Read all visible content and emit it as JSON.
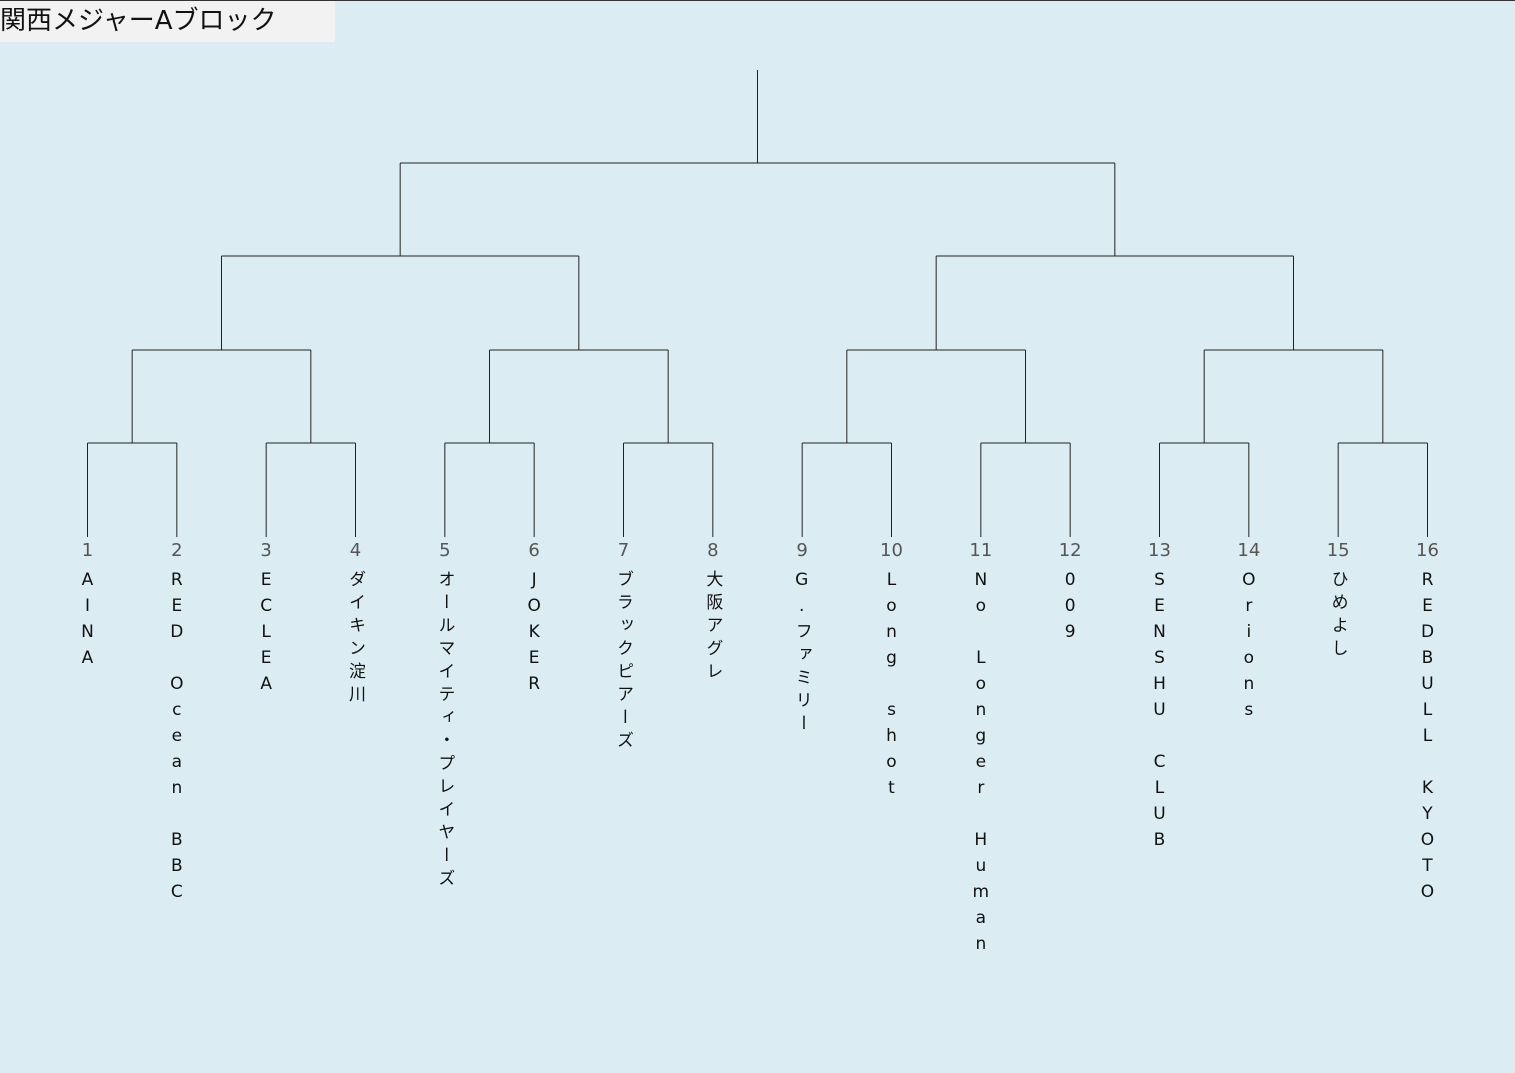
{
  "title": "関西メジャーAブロック",
  "teams": [
    {
      "seed": 1,
      "name": "AINA"
    },
    {
      "seed": 2,
      "name": "RED Ocean BBC"
    },
    {
      "seed": 3,
      "name": "ECLEA"
    },
    {
      "seed": 4,
      "name": "ダイキン淀川"
    },
    {
      "seed": 5,
      "name": "オールマイティ・プレイヤーズ"
    },
    {
      "seed": 6,
      "name": "JOKER"
    },
    {
      "seed": 7,
      "name": "ブラックピアーズ"
    },
    {
      "seed": 8,
      "name": "大阪アグレ"
    },
    {
      "seed": 9,
      "name": "G.ファミリー"
    },
    {
      "seed": 10,
      "name": "Long shot"
    },
    {
      "seed": 11,
      "name": "No Longer Human"
    },
    {
      "seed": 12,
      "name": "009"
    },
    {
      "seed": 13,
      "name": "SENSHU CLUB"
    },
    {
      "seed": 14,
      "name": "Orions"
    },
    {
      "seed": 15,
      "name": "ひめよし"
    },
    {
      "seed": 16,
      "name": "REDBULL KYOTO"
    }
  ]
}
